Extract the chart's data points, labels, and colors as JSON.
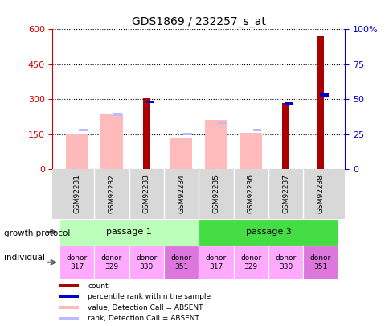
{
  "title": "GDS1869 / 232257_s_at",
  "samples": [
    "GSM92231",
    "GSM92232",
    "GSM92233",
    "GSM92234",
    "GSM92235",
    "GSM92236",
    "GSM92237",
    "GSM92238"
  ],
  "count": [
    0,
    0,
    305,
    0,
    0,
    0,
    285,
    570
  ],
  "percentile_rank_right": [
    0,
    0,
    47,
    0,
    0,
    0,
    46,
    52
  ],
  "value_absent": [
    150,
    235,
    0,
    130,
    210,
    155,
    0,
    0
  ],
  "rank_absent_right": [
    0,
    0,
    0,
    24,
    0,
    27,
    0,
    0
  ],
  "rank_absent_standalone": [
    27,
    38,
    0,
    0,
    32,
    0,
    0,
    0
  ],
  "ylim_left": [
    0,
    600
  ],
  "ylim_right": [
    0,
    100
  ],
  "yticks_left": [
    0,
    150,
    300,
    450,
    600
  ],
  "yticks_right": [
    0,
    25,
    50,
    75,
    100
  ],
  "passage1_color": "#bbffbb",
  "passage3_color": "#44dd44",
  "ind_colors": [
    "#ffaaff",
    "#ffaaff",
    "#ffaaff",
    "#dd77dd",
    "#ffaaff",
    "#ffaaff",
    "#ffaaff",
    "#dd77dd"
  ],
  "bar_width": 0.35,
  "count_color": "#aa0000",
  "percentile_color": "#0000cc",
  "value_absent_color": "#ffbbbb",
  "rank_absent_color": "#bbbbff",
  "bg_color": "#ffffff",
  "left_label_color": "#cc0000",
  "right_label_color": "#0000cc",
  "left_spine_color": "#cc0000",
  "right_spine_color": "#0000cc"
}
